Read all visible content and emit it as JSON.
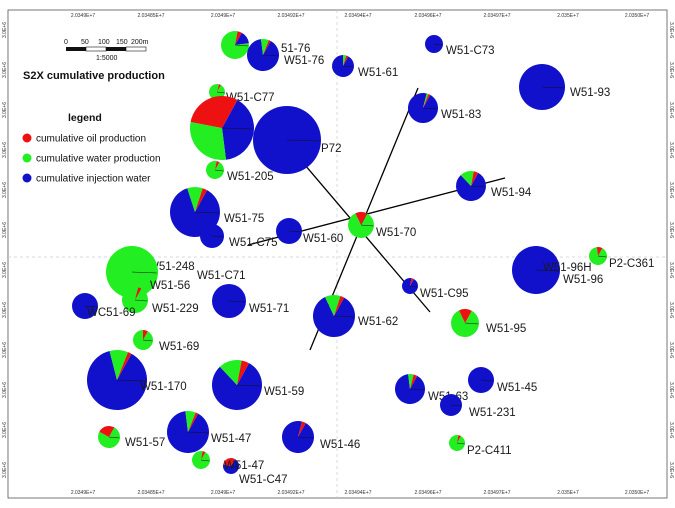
{
  "title": "S2X cumulative production",
  "legend": {
    "heading": "legend",
    "items": [
      {
        "label": "cumulative oil production",
        "color": "#ee1111"
      },
      {
        "label": "cumulative water production",
        "color": "#22ee22"
      },
      {
        "label": "cumulative injection water",
        "color": "#1111cc"
      }
    ]
  },
  "scale_bar": {
    "ticks": [
      "0",
      "50",
      "100",
      "150",
      "200m"
    ],
    "ratio": "1:5000"
  },
  "colors": {
    "oil": "#ee1111",
    "water": "#22ee22",
    "injection": "#1111cc"
  },
  "axis_labels": {
    "top": [
      "2.0349E+7",
      "2.03485E+7",
      "2.0349E+7",
      "2.03492E+7",
      "2.03494E+7",
      "2.03496E+7",
      "2.03497E+7",
      "2.035E+7",
      "2.0350E+7"
    ],
    "bottom": [
      "2.0349E+7",
      "2.03485E+7",
      "2.0349E+7",
      "2.03492E+7",
      "2.03494E+7",
      "2.03496E+7",
      "2.03497E+7",
      "2.035E+7",
      "2.0350E+7"
    ],
    "left": [
      "3.0E+6",
      "3.0E+6",
      "3.0E+6",
      "3.0E+6",
      "3.0E+6",
      "3.0E+6",
      "3.0E+6",
      "3.0E+6",
      "3.0E+6",
      "3.0E+6",
      "3.0E+6",
      "3.0E+6"
    ],
    "right": [
      "3.0E+6",
      "3.0E+6",
      "3.0E+6",
      "3.0E+6",
      "3.0E+6",
      "3.0E+6",
      "3.0E+6",
      "3.0E+6",
      "3.0E+6",
      "3.0E+6",
      "3.0E+6",
      "3.0E+6"
    ]
  },
  "wells": [
    {
      "label": "",
      "oil": 0.05,
      "water": 0.8,
      "inj": 0.15
    },
    {
      "label": "51-76",
      "oil": 0.02,
      "water": 0.08,
      "inj": 0.9
    },
    {
      "label": "W51-76",
      "oil": 0.03,
      "water": 0.12,
      "inj": 0.85
    },
    {
      "label": "W51-61",
      "oil": 0.03,
      "water": 0.05,
      "inj": 0.92
    },
    {
      "label": "W51-C73",
      "oil": 0,
      "water": 0,
      "inj": 1
    },
    {
      "label": "W51-93",
      "oil": 0,
      "water": 0,
      "inj": 1
    },
    {
      "label": "W51-C77",
      "oil": 0.04,
      "water": 0.96,
      "inj": 0
    },
    {
      "label": "",
      "oil": 0.3,
      "water": 0.3,
      "inj": 0.4
    },
    {
      "label": "P72",
      "oil": 0,
      "water": 0,
      "inj": 1
    },
    {
      "label": "W51-83",
      "oil": 0.02,
      "water": 0.02,
      "inj": 0.96
    },
    {
      "label": "W51-205",
      "oil": 0.05,
      "water": 0.95,
      "inj": 0
    },
    {
      "label": "W51-94",
      "oil": 0.05,
      "water": 0.15,
      "inj": 0.8
    },
    {
      "label": "W51-75",
      "oil": 0.03,
      "water": 0.1,
      "inj": 0.87
    },
    {
      "label": "W51-C75",
      "oil": 0,
      "water": 0,
      "inj": 1
    },
    {
      "label": "W51-60",
      "oil": 0,
      "water": 0,
      "inj": 1
    },
    {
      "label": "W51-70",
      "oil": 0.15,
      "water": 0.85,
      "inj": 0
    },
    {
      "label": "W51-96H",
      "oil": 0,
      "water": 0,
      "inj": 1
    },
    {
      "label": "P2-C361",
      "oil": 0.1,
      "water": 0.9,
      "inj": 0
    },
    {
      "label": "W51-96",
      "oil": 0,
      "water": 0,
      "inj": 1
    },
    {
      "label": "W51-248",
      "oil": 0.1,
      "water": 0.9,
      "inj": 0
    },
    {
      "label": "",
      "oil": 0,
      "water": 1,
      "inj": 0
    },
    {
      "label": "W51-C71",
      "oil": 0.1,
      "water": 0.9,
      "inj": 0
    },
    {
      "label": "W51-56",
      "oil": 0,
      "water": 1,
      "inj": 0
    },
    {
      "label": "W51-229",
      "oil": 0.04,
      "water": 0.96,
      "inj": 0
    },
    {
      "label": "WC51-69",
      "oil": 0,
      "water": 0,
      "inj": 1
    },
    {
      "label": "W51-71",
      "oil": 0,
      "water": 0,
      "inj": 1
    },
    {
      "label": "W51-C95",
      "oil": 0.05,
      "water": 0,
      "inj": 0.95
    },
    {
      "label": "W51-62",
      "oil": 0.03,
      "water": 0.12,
      "inj": 0.85
    },
    {
      "label": "W51-95",
      "oil": 0.15,
      "water": 0.85,
      "inj": 0
    },
    {
      "label": "W51-69",
      "oil": 0.08,
      "water": 0.92,
      "inj": 0
    },
    {
      "label": "W51-170",
      "oil": 0.02,
      "water": 0.1,
      "inj": 0.88
    },
    {
      "label": "W51-59",
      "oil": 0.05,
      "water": 0.15,
      "inj": 0.8
    },
    {
      "label": "W51-63",
      "oil": 0.04,
      "water": 0.06,
      "inj": 0.9
    },
    {
      "label": "W51-45",
      "oil": 0,
      "water": 0,
      "inj": 1
    },
    {
      "label": "W51-231",
      "oil": 0,
      "water": 0,
      "inj": 1
    },
    {
      "label": "W51-57",
      "oil": 0.25,
      "water": 0.75,
      "inj": 0
    },
    {
      "label": "W51-47",
      "oil": 0.02,
      "water": 0.08,
      "inj": 0.9
    },
    {
      "label": "W51-46",
      "oil": 0.04,
      "water": 0,
      "inj": 0.96
    },
    {
      "label": "P2-C411",
      "oil": 0.05,
      "water": 0.95,
      "inj": 0
    },
    {
      "label": "",
      "oil": 0.05,
      "water": 0.95,
      "inj": 0
    },
    {
      "label": "W51-47",
      "oil": 0.3,
      "water": 0,
      "inj": 0.7
    },
    {
      "label": "W51-C47",
      "oil": 0.02,
      "water": 0.98,
      "inj": 0
    }
  ]
}
